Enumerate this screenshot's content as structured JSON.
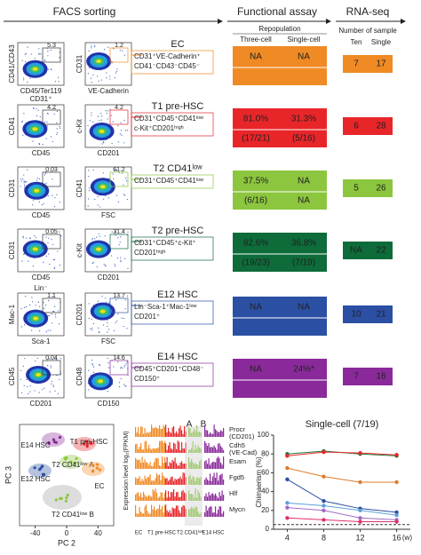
{
  "headers": {
    "facs": "FACS sorting",
    "functional": "Functional assay",
    "rnaseq": "RNA-seq",
    "repopulation": "Repopulation",
    "three_cell": "Three-cell",
    "single_cell": "Single-cell",
    "samples": "Number of sample",
    "ten": "Ten",
    "single": "Single"
  },
  "rows": [
    {
      "name": "EC",
      "color": "#f08a24",
      "markers": [
        "CD31⁺VE-Cadherin⁺",
        "CD41⁻CD43⁻CD45⁻"
      ],
      "note": "CD31⁺",
      "plots": [
        {
          "y": "CD41/CD43",
          "x": "CD45/Ter119",
          "gate": "5.3"
        },
        {
          "y": "CD31",
          "x": "VE-Cadherin",
          "gate": "1.2"
        }
      ],
      "rate": [
        "NA",
        "NA"
      ],
      "count": [],
      "rna": [
        "7",
        "17"
      ]
    },
    {
      "name": "T1 pre-HSC",
      "color": "#e8262a",
      "markers": [
        "CD31⁺CD45⁺CD41ˡᵒʷ",
        "c-Kit⁺CD201ʰⁱᵍʰ"
      ],
      "plots": [
        {
          "y": "CD41",
          "x": "CD45",
          "gate": "4.2"
        },
        {
          "y": "c-Kit",
          "x": "CD201",
          "gate": "4.2"
        }
      ],
      "rate": [
        "81.0%",
        "31.3%"
      ],
      "count": [
        "(17/21)",
        "(5/16)"
      ],
      "rna": [
        "6",
        "28"
      ]
    },
    {
      "name": "T2 CD41ˡᵒʷ",
      "color": "#8cc63e",
      "markers": [
        "CD31⁺CD45⁺CD41ˡᵒʷ"
      ],
      "plots": [
        {
          "y": "CD31",
          "x": "CD45",
          "gate": "0.03"
        },
        {
          "y": "CD41",
          "x": "FSC",
          "gate": "61.2"
        }
      ],
      "rate": [
        "37.5%",
        "NA"
      ],
      "count": [
        "(6/16)",
        "NA"
      ],
      "rna": [
        "5",
        "26"
      ]
    },
    {
      "name": "T2 pre-HSC",
      "color": "#0e6b3a",
      "markers": [
        "CD31⁺CD45⁺c-Kit⁺",
        "CD201ʰⁱᵍʰ"
      ],
      "plots": [
        {
          "y": "CD31",
          "x": "CD45",
          "gate": "0.05"
        },
        {
          "y": "c-Kit",
          "x": "CD201",
          "gate": "31.4"
        }
      ],
      "rate": [
        "82.6%",
        "36.8%"
      ],
      "count": [
        "(19/23)",
        "(7/19)"
      ],
      "rna": [
        "NA",
        "22"
      ]
    },
    {
      "name": "E12 HSC",
      "color": "#2a4fa3",
      "markers": [
        "Lin⁻Sca-1⁺Mac-1ˡᵒʷ",
        "CD201⁺"
      ],
      "note": "Lin⁻",
      "plots": [
        {
          "y": "Mac-1",
          "x": "Sca-1",
          "gate": "1.1"
        },
        {
          "y": "CD201",
          "x": "FSC",
          "gate": "13.7"
        }
      ],
      "rate": [
        "NA",
        "NA"
      ],
      "count": [],
      "rna": [
        "10",
        "21"
      ]
    },
    {
      "name": "E14 HSC",
      "color": "#8a2a9a",
      "markers": [
        "CD45⁺CD201⁺CD48⁻",
        "CD150⁺"
      ],
      "plots": [
        {
          "y": "CD45",
          "x": "CD201",
          "gate": "0.04"
        },
        {
          "y": "CD48",
          "x": "CD150",
          "gate": "14.6"
        }
      ],
      "rate": [
        "NA",
        "24%*"
      ],
      "count": [],
      "rna": [
        "7",
        "16"
      ]
    }
  ],
  "pca": {
    "xlabel": "PC 2",
    "ylabel": "PC 3",
    "xticks": [
      -40,
      0,
      40
    ],
    "xlim": [
      -60,
      60
    ],
    "groups": [
      {
        "label": "E14 HSC",
        "color": "#8a2a9a"
      },
      {
        "label": "T1 pre-HSC",
        "color": "#e8262a"
      },
      {
        "label": "T2 CD41ˡᵒʷ A",
        "color": "#8cc63e"
      },
      {
        "label": "E12 HSC",
        "color": "#2a4fa3"
      },
      {
        "label": "EC",
        "color": "#f08a24"
      },
      {
        "label": "T2 CD41ˡᵒʷ B",
        "color": "#8cc63e"
      }
    ]
  },
  "expression": {
    "ylabel": "Expression level log₂(FPKM)",
    "marks": [
      "A",
      "B"
    ],
    "genes": [
      [
        "Procr",
        "(CD201)"
      ],
      [
        "Cdh5",
        "(VE-Cad)"
      ],
      [
        "Esam"
      ],
      [
        "Fgd5"
      ],
      [
        "Hlf"
      ],
      [
        "Mycn"
      ]
    ],
    "groups": [
      {
        "label": "EC",
        "color": "#f08a24"
      },
      {
        "label": "T1 pre-HSC",
        "color": "#e8262a"
      },
      {
        "label": "T2 CD41ˡᵒʷ",
        "color": "#8cc63e"
      },
      {
        "label": "E14 HSC",
        "color": "#8a2a9a"
      }
    ]
  },
  "chimaerism": {
    "type": "line",
    "title": "Single-cell (7/19)",
    "ylabel": "Chimaerism (%)",
    "x_unit": "(w)",
    "x": [
      4,
      8,
      12,
      16
    ],
    "xlim": [
      2.5,
      17.5
    ],
    "ylim": [
      0,
      100
    ],
    "yticks": [
      0,
      20,
      40,
      60,
      80,
      100
    ],
    "threshold": 5,
    "series": [
      {
        "color": "#1e7a3a",
        "values": [
          80,
          83,
          80,
          78
        ]
      },
      {
        "color": "#e8262a",
        "values": [
          78,
          82,
          81,
          79
        ]
      },
      {
        "color": "#e07b2a",
        "values": [
          65,
          56,
          50,
          50
        ]
      },
      {
        "color": "#2a4fa3",
        "values": [
          53,
          30,
          22,
          18
        ]
      },
      {
        "color": "#5aa0d8",
        "values": [
          28,
          25,
          20,
          15
        ]
      },
      {
        "color": "#a06ac0",
        "values": [
          23,
          20,
          12,
          10
        ]
      },
      {
        "color": "#e0306a",
        "values": [
          12,
          10,
          8,
          8
        ]
      }
    ]
  }
}
